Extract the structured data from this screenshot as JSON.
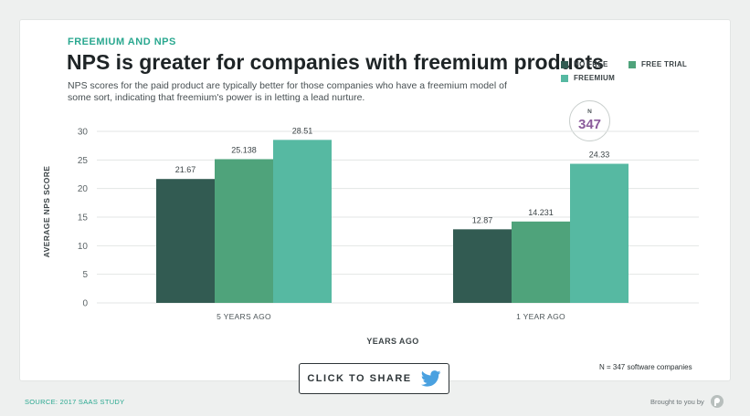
{
  "header": {
    "eyebrow": "FREEMIUM AND NPS",
    "title": "NPS is greater for companies with freemium products",
    "subtitle": "NPS scores for the paid product are typically better for those companies who have a freemium model of some sort, indicating that freemium's power is in letting a lead nurture."
  },
  "sample": {
    "label": "N",
    "value": "347"
  },
  "chart_data": {
    "type": "bar",
    "categories": [
      "5 YEARS AGO",
      "1 YEAR AGO"
    ],
    "series": [
      {
        "name": "NO FREE",
        "color": "#325b52",
        "values": [
          21.67,
          12.87
        ],
        "labels": [
          "21.67",
          "12.87"
        ]
      },
      {
        "name": "FREE TRIAL",
        "color": "#4fa37b",
        "values": [
          25.138,
          14.231
        ],
        "labels": [
          "25.138",
          "14.231"
        ]
      },
      {
        "name": "FREEMIUM",
        "color": "#56b9a2",
        "values": [
          28.51,
          24.33
        ],
        "labels": [
          "28.51",
          "24.33"
        ]
      }
    ],
    "xlabel": "YEARS AGO",
    "ylabel": "AVERAGE NPS SCORE",
    "ylim": [
      0,
      30
    ],
    "yticks": [
      0,
      5,
      10,
      15,
      20,
      25,
      30
    ],
    "grid": true,
    "legend": "top-right"
  },
  "footnote": "N = 347 software companies",
  "share": {
    "label": "CLICK TO SHARE",
    "icon": "twitter-bird-icon"
  },
  "footer": {
    "source": "SOURCE: 2017 SAAS STUDY",
    "brought_by": "Brought to you by"
  }
}
